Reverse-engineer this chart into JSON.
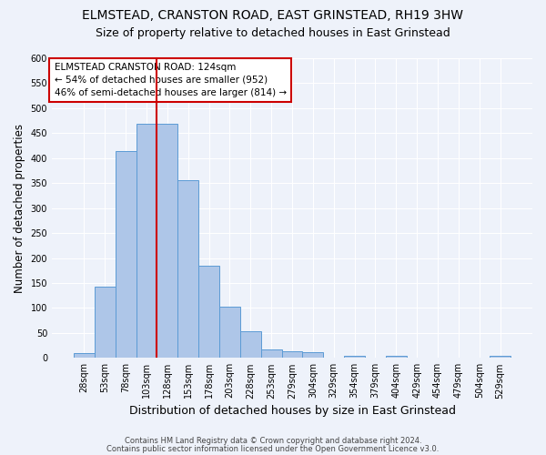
{
  "title1": "ELMSTEAD, CRANSTON ROAD, EAST GRINSTEAD, RH19 3HW",
  "title2": "Size of property relative to detached houses in East Grinstead",
  "xlabel": "Distribution of detached houses by size in East Grinstead",
  "ylabel": "Number of detached properties",
  "categories": [
    "28sqm",
    "53sqm",
    "78sqm",
    "103sqm",
    "128sqm",
    "153sqm",
    "178sqm",
    "203sqm",
    "228sqm",
    "253sqm",
    "279sqm",
    "304sqm",
    "329sqm",
    "354sqm",
    "379sqm",
    "404sqm",
    "429sqm",
    "454sqm",
    "479sqm",
    "504sqm",
    "529sqm"
  ],
  "values": [
    10,
    143,
    415,
    468,
    468,
    355,
    185,
    103,
    54,
    17,
    14,
    11,
    0,
    5,
    0,
    5,
    0,
    0,
    0,
    0,
    5
  ],
  "bar_color": "#aec6e8",
  "bar_edge_color": "#5b9bd5",
  "red_line_x": 3.5,
  "annotation_line1": "ELMSTEAD CRANSTON ROAD: 124sqm",
  "annotation_line2": "← 54% of detached houses are smaller (952)",
  "annotation_line3": "46% of semi-detached houses are larger (814) →",
  "ylim": [
    0,
    600
  ],
  "yticks": [
    0,
    50,
    100,
    150,
    200,
    250,
    300,
    350,
    400,
    450,
    500,
    550,
    600
  ],
  "footnote1": "Contains HM Land Registry data © Crown copyright and database right 2024.",
  "footnote2": "Contains public sector information licensed under the Open Government Licence v3.0.",
  "background_color": "#eef2fa",
  "grid_color": "#ffffff",
  "annotation_box_color": "#ffffff",
  "annotation_box_edge": "#cc0000",
  "red_line_color": "#cc0000",
  "title_fontsize": 10,
  "subtitle_fontsize": 9,
  "xlabel_fontsize": 9,
  "ylabel_fontsize": 8.5,
  "tick_fontsize": 7,
  "annotation_fontsize": 7.5,
  "footnote_fontsize": 6
}
